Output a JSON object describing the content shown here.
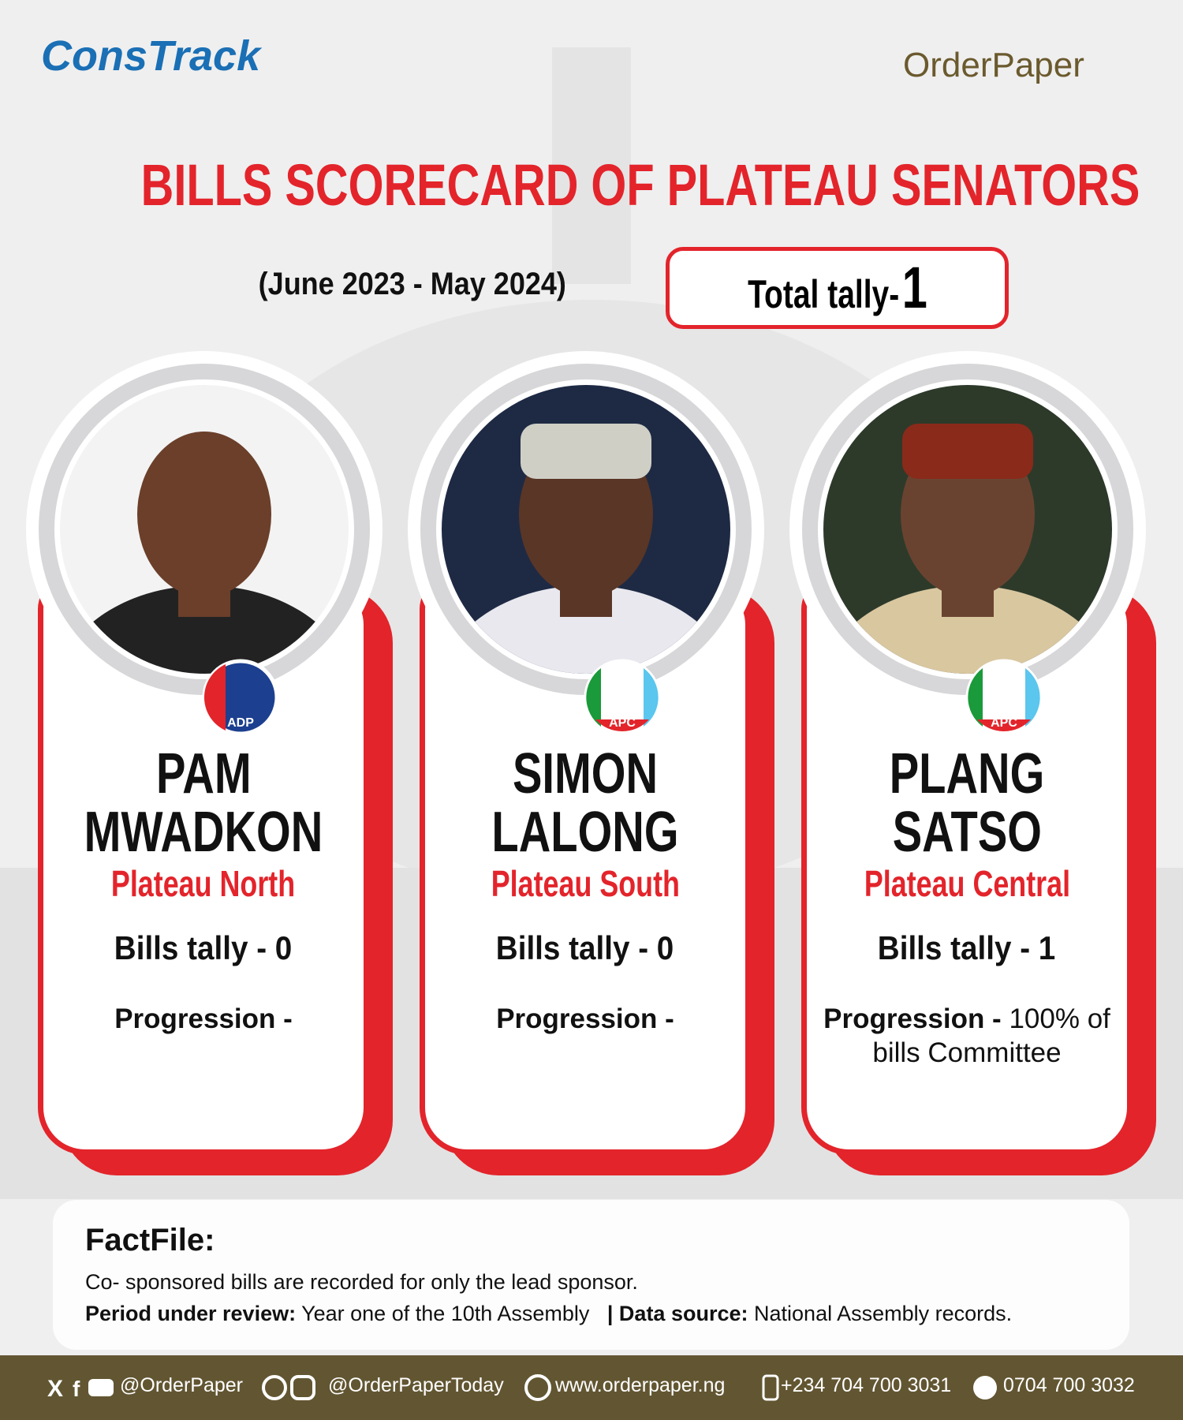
{
  "header": {
    "logo_left": "ConsTrack",
    "logo_right": "OrderPaper",
    "title": "BILLS SCORECARD OF PLATEAU SENATORS",
    "period": "(June 2023 - May 2024)",
    "total_label": "Total tally-",
    "total_value": "1"
  },
  "senators": [
    {
      "party": "ADP",
      "name_line1": "PAM",
      "name_line2": "MWADKON",
      "district": "Plateau North",
      "bills": "Bills tally - 0",
      "progression_label": "Progression -"
    },
    {
      "party": "APC",
      "name_line1": "SIMON",
      "name_line2": "LALONG",
      "district": "Plateau South",
      "bills": "Bills tally - 0",
      "progression_label": "Progression -"
    },
    {
      "party": "APC",
      "name_line1": "PLANG",
      "name_line2": "SATSO",
      "district": "Plateau Central",
      "bills": "Bills tally - 1",
      "progression_label": "Progression -",
      "progression_detail": "100% of bills Committee"
    }
  ],
  "factfile": {
    "heading": "FactFile:",
    "note": "Co- sponsored bills are recorded for only the lead sponsor.",
    "period_label": "Period under review:",
    "period_value": "Year one of the 10th Assembly",
    "source_label": "| Data source:",
    "source_value": "National Assembly records."
  },
  "footer": {
    "handle": "@OrderPaper",
    "handle2": "@OrderPaperToday",
    "website": "www.orderpaper.ng",
    "phone": "+234 704 700 3031",
    "whatsapp": "0704 700 3032"
  }
}
